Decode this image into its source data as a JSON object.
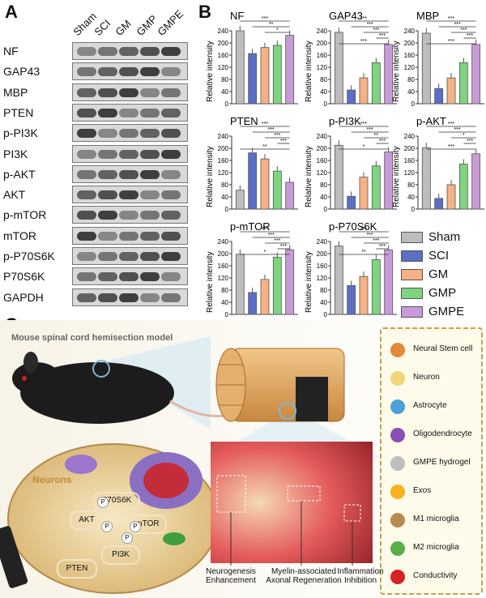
{
  "panels": {
    "a": "A",
    "b": "B",
    "c": "C"
  },
  "lanes": [
    "Sham",
    "SCI",
    "GM",
    "GMP",
    "GMPE"
  ],
  "proteins": [
    "NF",
    "GAP43",
    "MBP",
    "PTEN",
    "p-PI3K",
    "PI3K",
    "p-AKT",
    "AKT",
    "p-mTOR",
    "mTOR",
    "p-P70S6K",
    "P70S6K",
    "GAPDH"
  ],
  "ylabel": "Relative intensity",
  "colors": {
    "Sham": "#bdbdbd",
    "SCI": "#5b6fc4",
    "GM": "#f5b183",
    "GMP": "#7fd47f",
    "GMPE": "#c99ad8"
  },
  "bar_fill": {
    "Sham": "#bdbdbd",
    "SCI": "#5b6fc4",
    "GM": "#f5b183",
    "GMP": "#7fd47f",
    "GMPE": "#c99ad8"
  },
  "chart_data": [
    {
      "type": "bar",
      "title": "NF",
      "categories": [
        "Sham",
        "SCI",
        "GM",
        "GMP",
        "GMPE"
      ],
      "values": [
        240,
        165,
        185,
        192,
        225
      ],
      "ylim": [
        0,
        240
      ],
      "yticks": [
        0,
        20,
        40,
        60,
        80,
        100,
        120,
        140,
        160,
        180,
        200,
        220,
        240
      ],
      "sig": [
        "***",
        "**",
        "*"
      ]
    },
    {
      "type": "bar",
      "title": "GAP43",
      "categories": [
        "Sham",
        "SCI",
        "GM",
        "GMP",
        "GMPE"
      ],
      "values": [
        235,
        45,
        85,
        135,
        195
      ],
      "ylim": [
        0,
        240
      ],
      "yticks": [
        0,
        40,
        80,
        120,
        160,
        200,
        240
      ],
      "sig": [
        "***",
        "***",
        "***",
        "***",
        "***"
      ]
    },
    {
      "type": "bar",
      "title": "MBP",
      "categories": [
        "Sham",
        "SCI",
        "GM",
        "GMP",
        "GMPE"
      ],
      "values": [
        232,
        50,
        85,
        135,
        195
      ],
      "ylim": [
        0,
        240
      ],
      "yticks": [
        0,
        40,
        80,
        120,
        160,
        200,
        240
      ],
      "sig": [
        "***",
        "***",
        "***",
        "***",
        "***"
      ]
    },
    {
      "type": "bar",
      "title": "PTEN",
      "categories": [
        "Sham",
        "SCI",
        "GM",
        "GMP",
        "GMPE"
      ],
      "values": [
        62,
        185,
        165,
        125,
        88
      ],
      "ylim": [
        0,
        240
      ],
      "yticks": [
        0,
        40,
        80,
        120,
        160,
        200,
        240
      ],
      "sig": [
        "***",
        "***",
        "***",
        "***",
        "**"
      ]
    },
    {
      "type": "bar",
      "title": "p-PI3K",
      "categories": [
        "Sham",
        "SCI",
        "GM",
        "GMP",
        "GMPE"
      ],
      "values": [
        210,
        42,
        105,
        142,
        188
      ],
      "ylim": [
        0,
        240
      ],
      "yticks": [
        0,
        20,
        40,
        60,
        80,
        100,
        120,
        140,
        160,
        180,
        200,
        220,
        240
      ],
      "sig": [
        "***",
        "***",
        "**",
        "***",
        "*"
      ]
    },
    {
      "type": "bar",
      "title": "p-AKT",
      "categories": [
        "Sham",
        "SCI",
        "GM",
        "GMP",
        "GMPE"
      ],
      "values": [
        202,
        35,
        80,
        148,
        182
      ],
      "ylim": [
        0,
        240
      ],
      "yticks": [
        0,
        40,
        80,
        120,
        160,
        200,
        240
      ],
      "sig": [
        "***",
        "***",
        "*",
        "***",
        "***"
      ]
    },
    {
      "type": "bar",
      "title": "p-mTOR",
      "categories": [
        "Sham",
        "SCI",
        "GM",
        "GMP",
        "GMPE"
      ],
      "values": [
        198,
        72,
        115,
        188,
        213
      ],
      "ylim": [
        0,
        240
      ],
      "yticks": [
        0,
        40,
        80,
        120,
        160,
        200,
        240
      ],
      "sig": [
        "***",
        "***",
        "***",
        "***",
        "*"
      ]
    },
    {
      "type": "bar",
      "title": "p-P70S6K",
      "categories": [
        "Sham",
        "SCI",
        "GM",
        "GMP",
        "GMPE"
      ],
      "values": [
        225,
        95,
        125,
        180,
        212
      ],
      "ylim": [
        0,
        240
      ],
      "yticks": [
        0,
        40,
        80,
        120,
        160,
        200,
        240
      ],
      "sig": [
        "***",
        "***",
        "***",
        "***",
        "**"
      ]
    }
  ],
  "schematic": {
    "title": "Mouse spinal cord hemisection model",
    "neurons_label": "Neurons",
    "pathway": [
      "PTEN",
      "PI3K",
      "AKT",
      "mTOR",
      "P70S6K"
    ],
    "p_label": "P",
    "captions": [
      "Neurogenesis Enhancement",
      "Myelin-associated Axonal Regeneration",
      "Inflammation Inhibition"
    ],
    "legend": [
      "Neural Stem cell",
      "Neuron",
      "Astrocyte",
      "Oligodendrocyte",
      "GMPE hydrogel",
      "Exos",
      "M1 microglia",
      "M2 microglia",
      "Conductivity"
    ]
  }
}
